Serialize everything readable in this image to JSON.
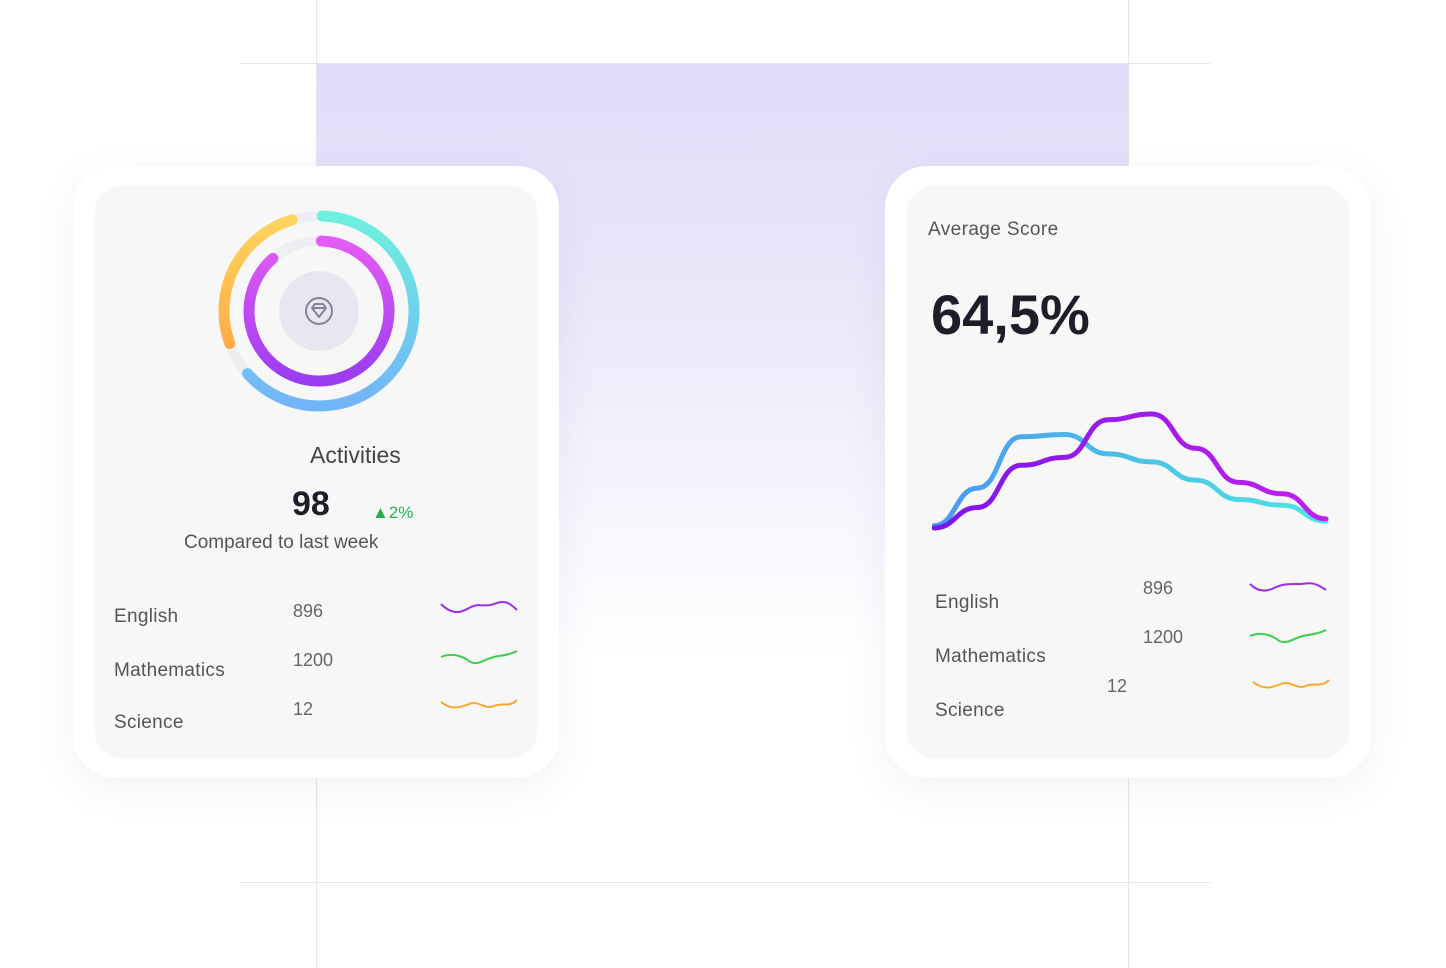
{
  "activities_card": {
    "icon": "diamond-icon",
    "title": "Activities",
    "value": "98",
    "change": "2%",
    "change_direction": "up",
    "subtitle": "Compared to last week",
    "rings": {
      "outer_yellow": 0.26,
      "outer_blue": 0.63,
      "inner_purple": 0.88
    },
    "subjects": [
      {
        "name": "English",
        "value": "896",
        "color": "#9b2ee8"
      },
      {
        "name": "Mathematics",
        "value": "1200",
        "color": "#3ccf4a"
      },
      {
        "name": "Science",
        "value": "12",
        "color": "#f7a928"
      }
    ]
  },
  "score_card": {
    "title": "Average Score",
    "value": "64,5%",
    "subjects": [
      {
        "name": "English",
        "value": "896",
        "color": "#9b2ee8"
      },
      {
        "name": "Mathematics",
        "value": "1200",
        "color": "#3ccf4a"
      },
      {
        "name": "Science",
        "value": "12",
        "color": "#f7a928"
      }
    ]
  },
  "chart_data": {
    "type": "line",
    "series": [
      {
        "color": "#4aa8f0",
        "values": [
          2,
          35,
          80,
          82,
          65,
          58,
          42,
          25,
          20,
          6
        ]
      },
      {
        "color": "#a020f0",
        "values": [
          0,
          18,
          55,
          62,
          95,
          100,
          70,
          40,
          30,
          8
        ]
      }
    ]
  },
  "colors": {
    "accent": "#9b2ee8",
    "up": "#22b14c"
  }
}
